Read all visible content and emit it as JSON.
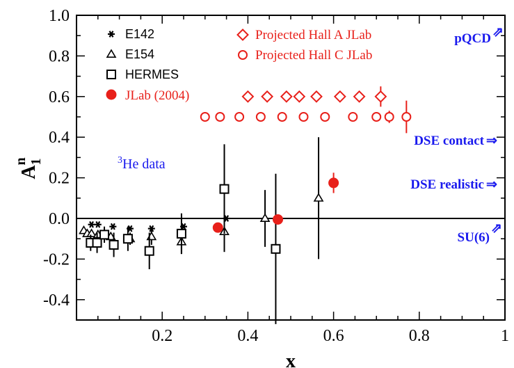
{
  "chart_data": {
    "type": "scatter",
    "xlabel": "x",
    "ylabel_main": "A",
    "ylabel_sub": "1",
    "ylabel_sup": "n",
    "xlim": [
      0,
      1
    ],
    "ylim": [
      -0.5,
      1.0
    ],
    "x_ticks": [
      {
        "v": 0.2,
        "t": "0.2"
      },
      {
        "v": 0.4,
        "t": "0.4"
      },
      {
        "v": 0.6,
        "t": "0.6"
      },
      {
        "v": 0.8,
        "t": "0.8"
      },
      {
        "v": 1.0,
        "t": "1"
      }
    ],
    "y_ticks": [
      {
        "v": 1.0,
        "t": "1.0"
      },
      {
        "v": 0.8,
        "t": "0.8"
      },
      {
        "v": 0.6,
        "t": "0.6"
      },
      {
        "v": 0.4,
        "t": "0.4"
      },
      {
        "v": 0.2,
        "t": "0.2"
      },
      {
        "v": 0.0,
        "t": "0.0"
      },
      {
        "v": -0.2,
        "t": "-0.2"
      },
      {
        "v": -0.4,
        "t": "-0.4"
      }
    ],
    "legend_left": [
      {
        "label": "E142",
        "marker": "star"
      },
      {
        "label": "E154",
        "marker": "triangle"
      },
      {
        "label": "HERMES",
        "marker": "square"
      },
      {
        "label": "JLab (2004)",
        "marker": "filled-circle"
      }
    ],
    "legend_right": [
      {
        "label": "Projected Hall A JLab",
        "marker": "diamond"
      },
      {
        "label": "Projected Hall C JLab",
        "marker": "circle"
      }
    ],
    "data_note_sup": "3",
    "data_note": "He data",
    "annotations": [
      {
        "label": "pQCD",
        "y": 1.0,
        "arrow": "⇗"
      },
      {
        "label": "DSE contact",
        "y": 0.385,
        "arrow": "⇒"
      },
      {
        "label": "DSE realistic",
        "y": 0.17,
        "arrow": "⇒"
      },
      {
        "label": "SU(6)",
        "y": 0.0,
        "arrow": "⇗"
      }
    ],
    "series": [
      {
        "name": "E142",
        "marker": "star",
        "color": "#000000",
        "points": [
          {
            "x": 0.035,
            "y": -0.03,
            "err": 0.0
          },
          {
            "x": 0.05,
            "y": -0.03,
            "err": 0.0
          },
          {
            "x": 0.085,
            "y": -0.04,
            "err": 0.0
          },
          {
            "x": 0.125,
            "y": -0.05,
            "err": 0.0
          },
          {
            "x": 0.175,
            "y": -0.05,
            "err": 0.0
          },
          {
            "x": 0.25,
            "y": -0.04,
            "err": 0.0
          },
          {
            "x": 0.35,
            "y": 0.0,
            "err": 0.0
          }
        ]
      },
      {
        "name": "E154",
        "marker": "triangle",
        "color": "#000000",
        "points": [
          {
            "x": 0.017,
            "y": -0.06,
            "err": 0.0
          },
          {
            "x": 0.025,
            "y": -0.075,
            "err": 0.0
          },
          {
            "x": 0.035,
            "y": -0.075,
            "err": 0.0
          },
          {
            "x": 0.05,
            "y": -0.08,
            "err": 0.02
          },
          {
            "x": 0.08,
            "y": -0.09,
            "err": 0.02
          },
          {
            "x": 0.125,
            "y": -0.1,
            "err": 0.03
          },
          {
            "x": 0.175,
            "y": -0.09,
            "err": 0.04
          },
          {
            "x": 0.245,
            "y": -0.115,
            "err": 0.06
          },
          {
            "x": 0.345,
            "y": -0.065,
            "err": 0.1
          },
          {
            "x": 0.44,
            "y": 0.0,
            "err": 0.14
          },
          {
            "x": 0.565,
            "y": 0.1,
            "err": 0.3
          }
        ]
      },
      {
        "name": "HERMES",
        "marker": "square",
        "color": "#000000",
        "points": [
          {
            "x": 0.033,
            "y": -0.12,
            "err": 0.04
          },
          {
            "x": 0.048,
            "y": -0.12,
            "err": 0.05
          },
          {
            "x": 0.065,
            "y": -0.08,
            "err": 0.04
          },
          {
            "x": 0.087,
            "y": -0.13,
            "err": 0.06
          },
          {
            "x": 0.12,
            "y": -0.1,
            "err": 0.06
          },
          {
            "x": 0.17,
            "y": -0.16,
            "err": 0.09
          },
          {
            "x": 0.245,
            "y": -0.075,
            "err": 0.1
          },
          {
            "x": 0.345,
            "y": 0.145,
            "err": 0.22
          },
          {
            "x": 0.465,
            "y": -0.15,
            "err": 0.37
          }
        ]
      },
      {
        "name": "JLab (2004)",
        "marker": "filled-circle",
        "color": "#e8201a",
        "points": [
          {
            "x": 0.33,
            "y": -0.045,
            "err": 0.0
          },
          {
            "x": 0.47,
            "y": -0.005,
            "err": 0.02
          },
          {
            "x": 0.6,
            "y": 0.175,
            "err": 0.05
          }
        ]
      },
      {
        "name": "Projected Hall A JLab",
        "marker": "diamond",
        "color": "#e8201a",
        "points": [
          {
            "x": 0.4,
            "y": 0.6,
            "err": 0.0
          },
          {
            "x": 0.445,
            "y": 0.6,
            "err": 0.0
          },
          {
            "x": 0.49,
            "y": 0.6,
            "err": 0.0
          },
          {
            "x": 0.52,
            "y": 0.6,
            "err": 0.0
          },
          {
            "x": 0.56,
            "y": 0.6,
            "err": 0.0
          },
          {
            "x": 0.615,
            "y": 0.6,
            "err": 0.0
          },
          {
            "x": 0.66,
            "y": 0.6,
            "err": 0.0
          },
          {
            "x": 0.71,
            "y": 0.6,
            "err": 0.05
          }
        ]
      },
      {
        "name": "Projected Hall C JLab",
        "marker": "circle",
        "color": "#e8201a",
        "points": [
          {
            "x": 0.3,
            "y": 0.5,
            "err": 0.0
          },
          {
            "x": 0.335,
            "y": 0.5,
            "err": 0.0
          },
          {
            "x": 0.38,
            "y": 0.5,
            "err": 0.0
          },
          {
            "x": 0.43,
            "y": 0.5,
            "err": 0.0
          },
          {
            "x": 0.48,
            "y": 0.5,
            "err": 0.0
          },
          {
            "x": 0.53,
            "y": 0.5,
            "err": 0.0
          },
          {
            "x": 0.58,
            "y": 0.5,
            "err": 0.0
          },
          {
            "x": 0.645,
            "y": 0.5,
            "err": 0.0
          },
          {
            "x": 0.7,
            "y": 0.5,
            "err": 0.0
          },
          {
            "x": 0.73,
            "y": 0.5,
            "err": 0.03
          },
          {
            "x": 0.77,
            "y": 0.5,
            "err": 0.08
          }
        ]
      }
    ]
  }
}
